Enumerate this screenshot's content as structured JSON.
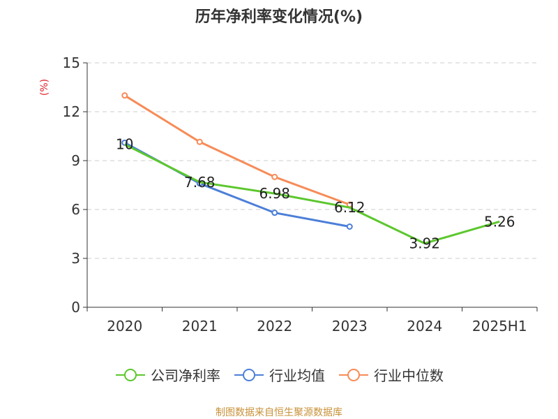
{
  "chart_data": {
    "type": "line",
    "title": "历年净利率变化情况(%)",
    "ylabel": "(%)",
    "categories": [
      "2020",
      "2021",
      "2022",
      "2023",
      "2024",
      "2025H1"
    ],
    "yticks": [
      "0",
      "3",
      "6",
      "9",
      "12",
      "15"
    ],
    "ylim": [
      0,
      15
    ],
    "grid": true,
    "legend_position": "bottom",
    "series": [
      {
        "name": "公司净利率",
        "color": "#5cc72d",
        "values": [
          10,
          7.68,
          6.98,
          6.12,
          3.92,
          5.26
        ],
        "labels": [
          "10",
          "7.68",
          "6.98",
          "6.12",
          "3.92",
          "5.26"
        ]
      },
      {
        "name": "行业均值",
        "color": "#4c7fd8",
        "values": [
          10.1,
          7.6,
          5.8,
          4.95,
          null,
          null
        ]
      },
      {
        "name": "行业中位数",
        "color": "#f78b57",
        "values": [
          13.0,
          10.15,
          8.0,
          6.3,
          null,
          null
        ]
      }
    ]
  },
  "footer": {
    "source": "制图数据来自恒生聚源数据库"
  }
}
